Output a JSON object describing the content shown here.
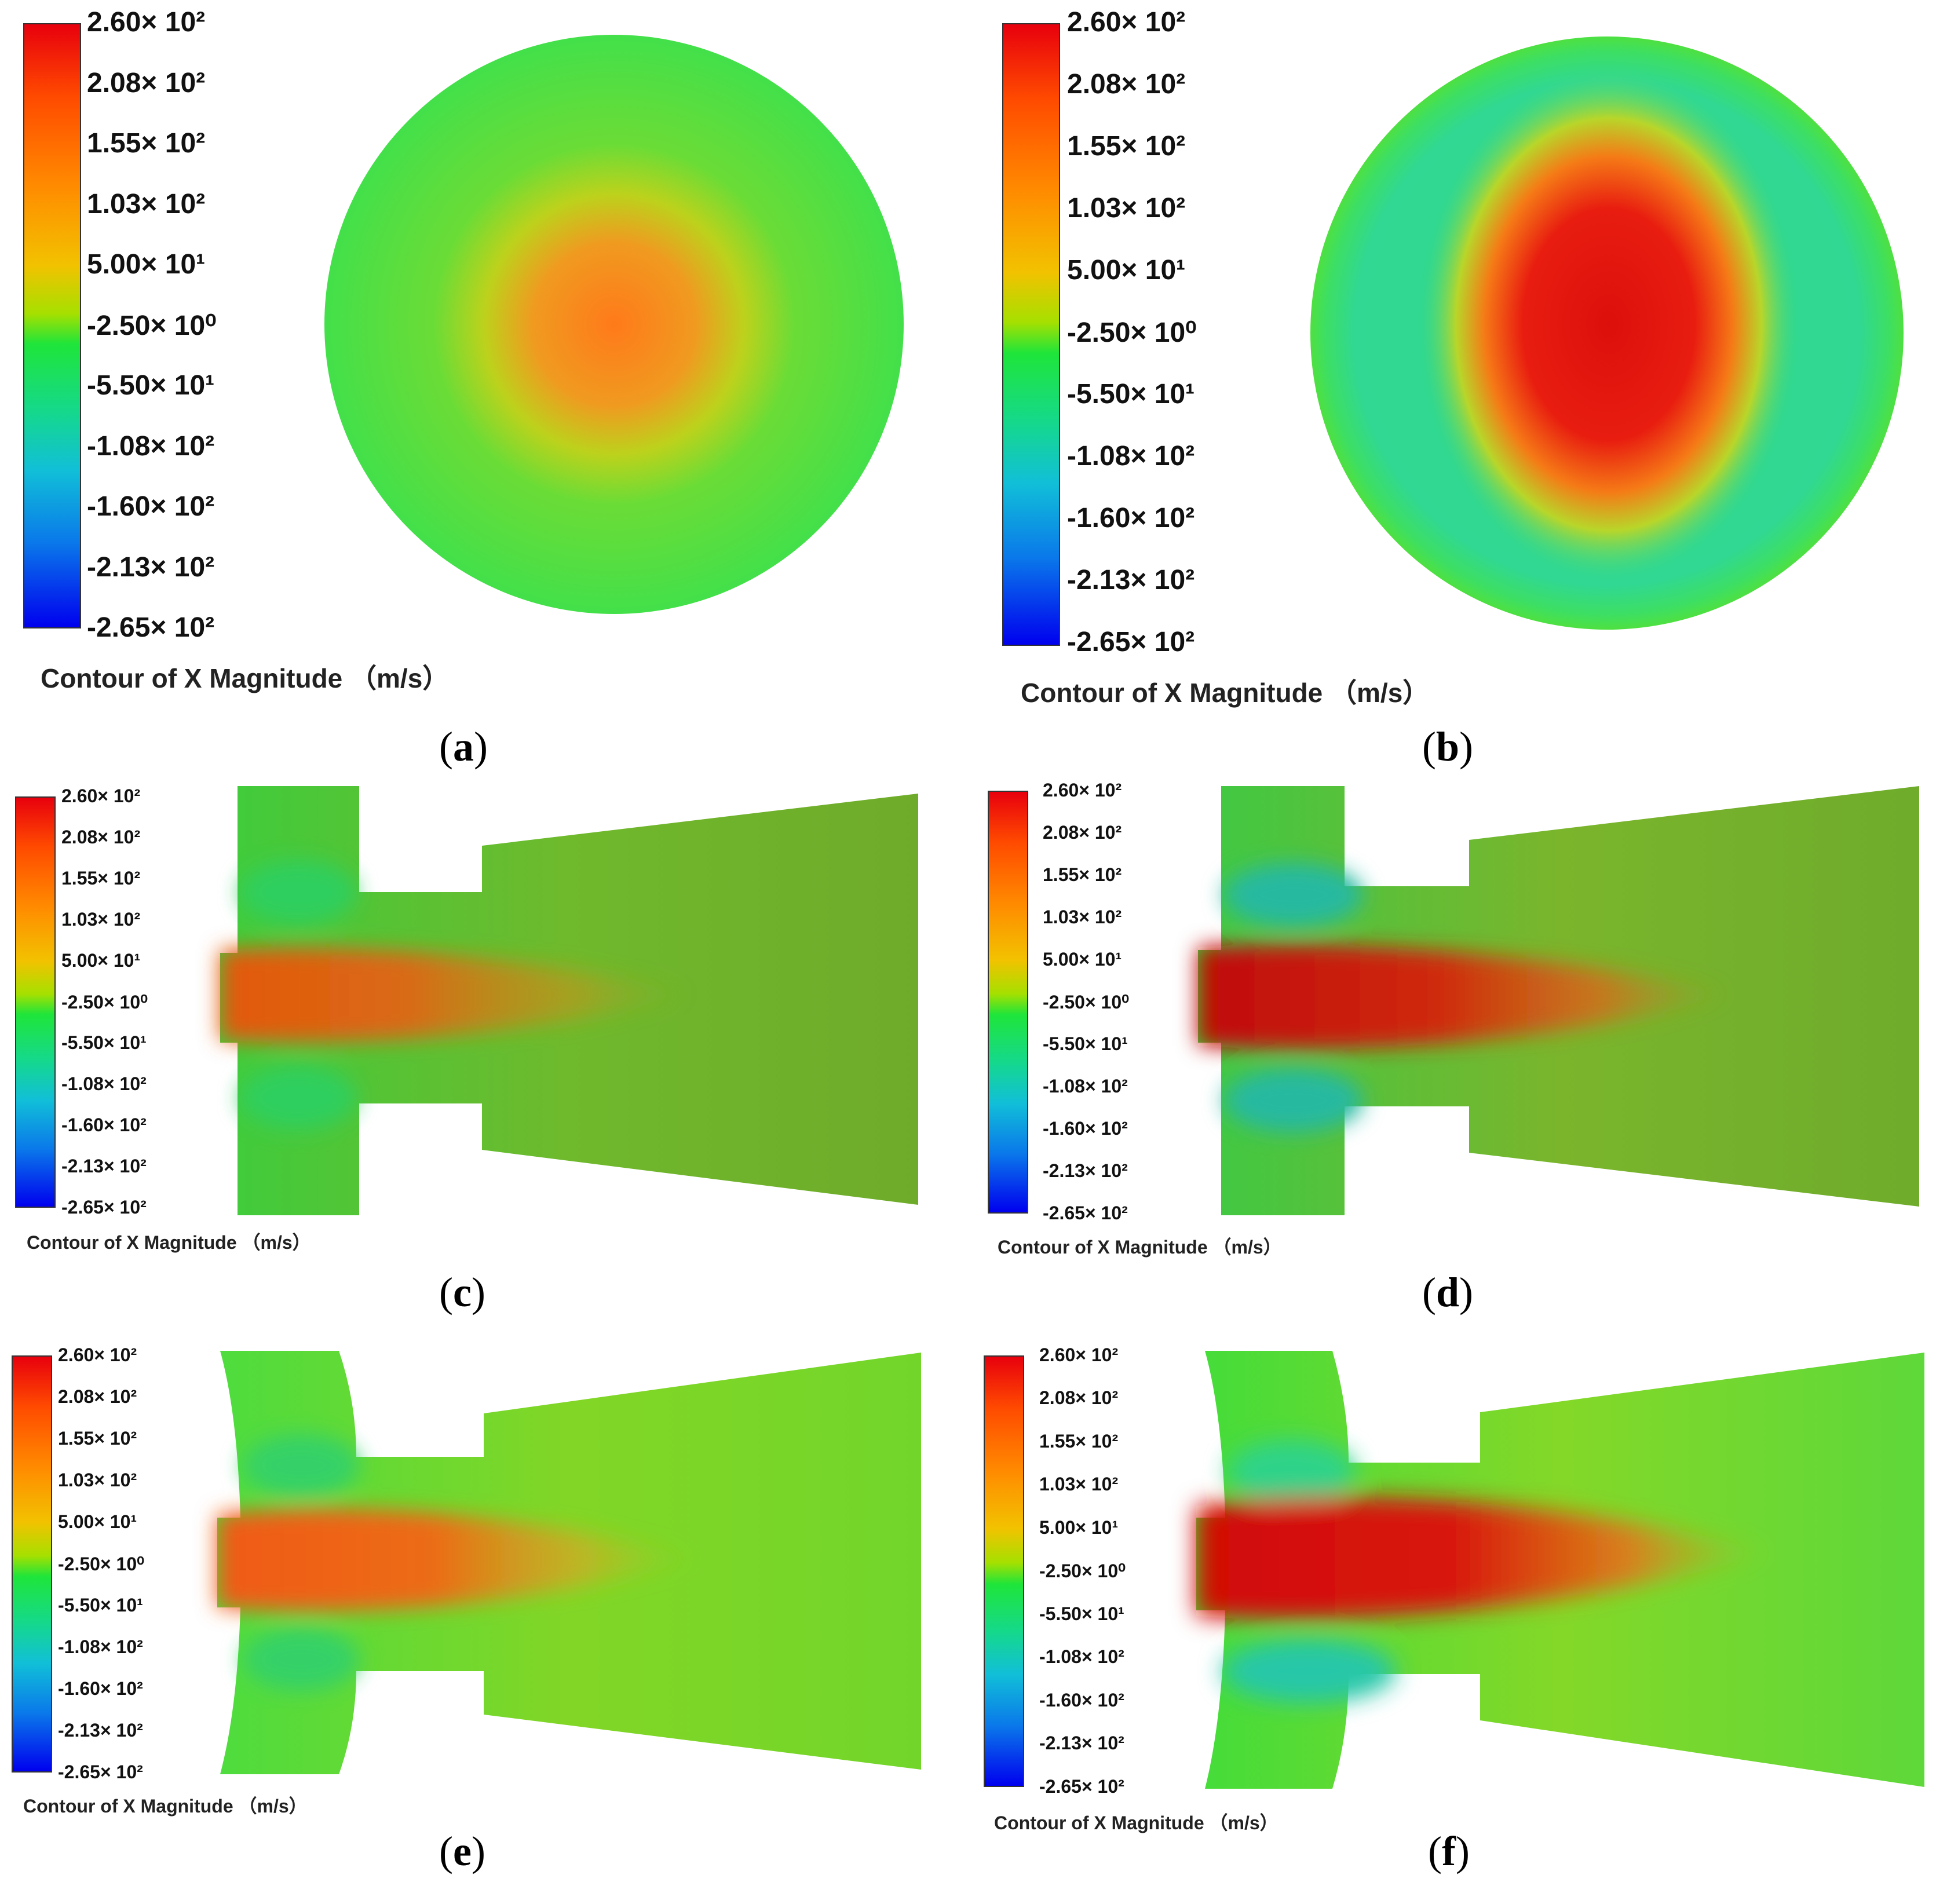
{
  "colorbar": {
    "ticks": [
      "2.60× 10²",
      "2.08× 10²",
      "1.55× 10²",
      "1.03× 10²",
      "5.00× 10¹",
      "-2.50× 10⁰",
      "-5.50× 10¹",
      "-1.08× 10²",
      "-1.60× 10²",
      "-2.13× 10²",
      "-2.65× 10²"
    ],
    "colors": [
      "#e8000d",
      "#ff4a00",
      "#ff8c00",
      "#f2c200",
      "#a6e000",
      "#1fe53a",
      "#15d98a",
      "#11bfd8",
      "#0a78ea",
      "#0000ee"
    ]
  },
  "caption": "Contour of X Magnitude （m/s）",
  "panels": [
    {
      "label_open": "(",
      "letter": "a",
      "label_close": ")"
    },
    {
      "label_open": "(",
      "letter": "b",
      "label_close": ")"
    },
    {
      "label_open": "(",
      "letter": "c",
      "label_close": ")"
    },
    {
      "label_open": "(",
      "letter": "d",
      "label_close": ")"
    },
    {
      "label_open": "(",
      "letter": "e",
      "label_close": ")"
    },
    {
      "label_open": "(",
      "letter": "f",
      "label_close": ")"
    }
  ]
}
